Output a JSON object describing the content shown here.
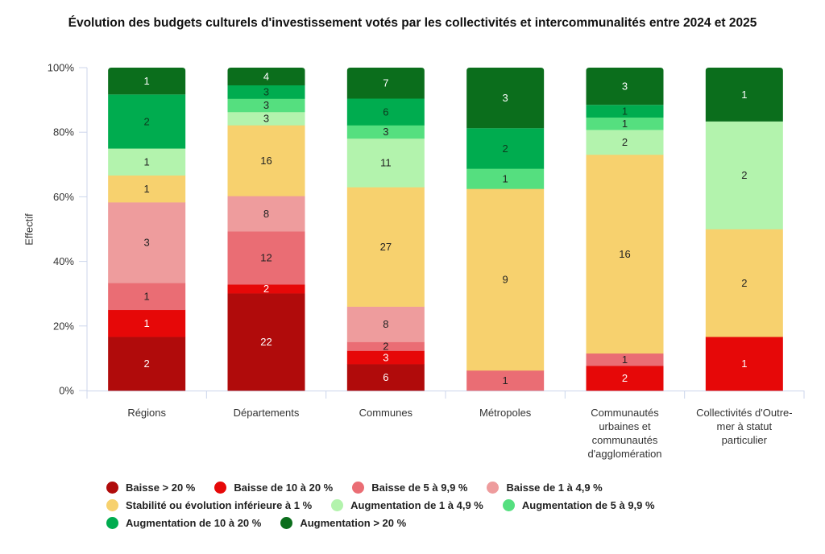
{
  "chart_data": {
    "type": "bar",
    "stacked": "percent",
    "title": "Évolution des budgets culturels d'investissement votés par les collectivités et intercommunalités entre 2024 et 2025",
    "xlabel": "",
    "ylabel": "Effectif",
    "ylim": [
      0,
      100
    ],
    "yticks": [
      "0%",
      "20%",
      "40%",
      "60%",
      "80%",
      "100%"
    ],
    "grid": false,
    "legend_position": "bottom-left",
    "categories": [
      [
        "Régions"
      ],
      [
        "Départements"
      ],
      [
        "Communes"
      ],
      [
        "Métropoles"
      ],
      [
        "Communautés",
        "urbaines et",
        "communautés",
        "d'agglomération"
      ],
      [
        "Collectivités d'Outre-",
        "mer à statut",
        "particulier"
      ]
    ],
    "series": [
      {
        "name": "Baisse > 20 %",
        "color": "#b00b0b",
        "label_color": "#ffffff",
        "values": [
          2,
          22,
          6,
          0,
          0,
          0
        ]
      },
      {
        "name": "Baisse de 10 à 20 %",
        "color": "#e60808",
        "label_color": "#ffffff",
        "values": [
          1,
          2,
          3,
          0,
          2,
          1
        ]
      },
      {
        "name": "Baisse de 5 à 9,9 %",
        "color": "#ea6d74",
        "label_color": "#222222",
        "values": [
          1,
          12,
          2,
          1,
          1,
          0
        ]
      },
      {
        "name": "Baisse de 1 à 4,9 %",
        "color": "#ee9c9d",
        "label_color": "#222222",
        "values": [
          3,
          8,
          8,
          0,
          0,
          0
        ]
      },
      {
        "name": "Stabilité ou évolution inférieure à 1 %",
        "color": "#f7d16e",
        "label_color": "#222222",
        "values": [
          1,
          16,
          27,
          9,
          16,
          2
        ]
      },
      {
        "name": "Augmentation de 1 à 4,9 %",
        "color": "#b3f3ad",
        "label_color": "#222222",
        "values": [
          1,
          3,
          11,
          0,
          2,
          2
        ]
      },
      {
        "name": "Augmentation de 5 à 9,9 %",
        "color": "#55df7f",
        "label_color": "#222222",
        "values": [
          0,
          3,
          3,
          1,
          1,
          0
        ]
      },
      {
        "name": "Augmentation de 10 à 20 %",
        "color": "#00ac4f",
        "label_color": "#0d3b1e",
        "values": [
          2,
          3,
          6,
          2,
          1,
          0
        ]
      },
      {
        "name": "Augmentation > 20 %",
        "color": "#0b6e1c",
        "label_color": "#ffffff",
        "values": [
          1,
          4,
          7,
          3,
          3,
          1
        ]
      }
    ]
  },
  "legend_rows": [
    [
      0,
      1,
      2,
      3
    ],
    [
      4,
      5,
      6
    ],
    [
      7,
      8
    ]
  ]
}
